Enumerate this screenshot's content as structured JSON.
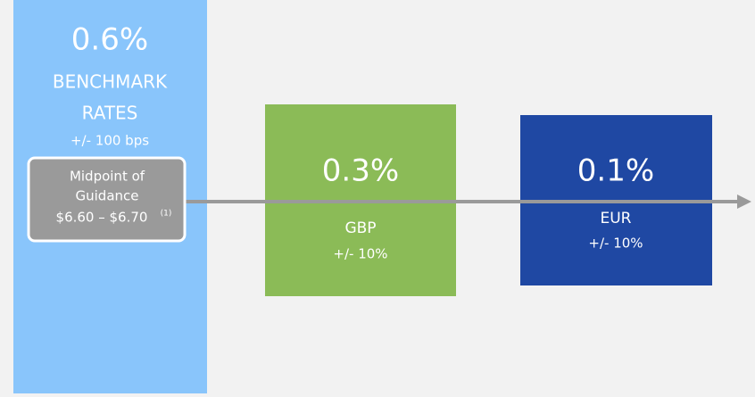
{
  "boxes": [
    {
      "value": "0.6%",
      "label": [
        "BENCHMARK",
        "RATES"
      ],
      "sub": "+/- 100 bps"
    },
    {
      "value": "0.3%",
      "label": [
        "GBP"
      ],
      "sub": "+/- 10%"
    },
    {
      "value": "0.1%",
      "label": [
        "EUR"
      ],
      "sub": "+/- 10%"
    }
  ],
  "guidance": {
    "lines": [
      "Midpoint of",
      "Guidance"
    ],
    "range": "$6.60 – $6.70",
    "note": "(1)"
  }
}
